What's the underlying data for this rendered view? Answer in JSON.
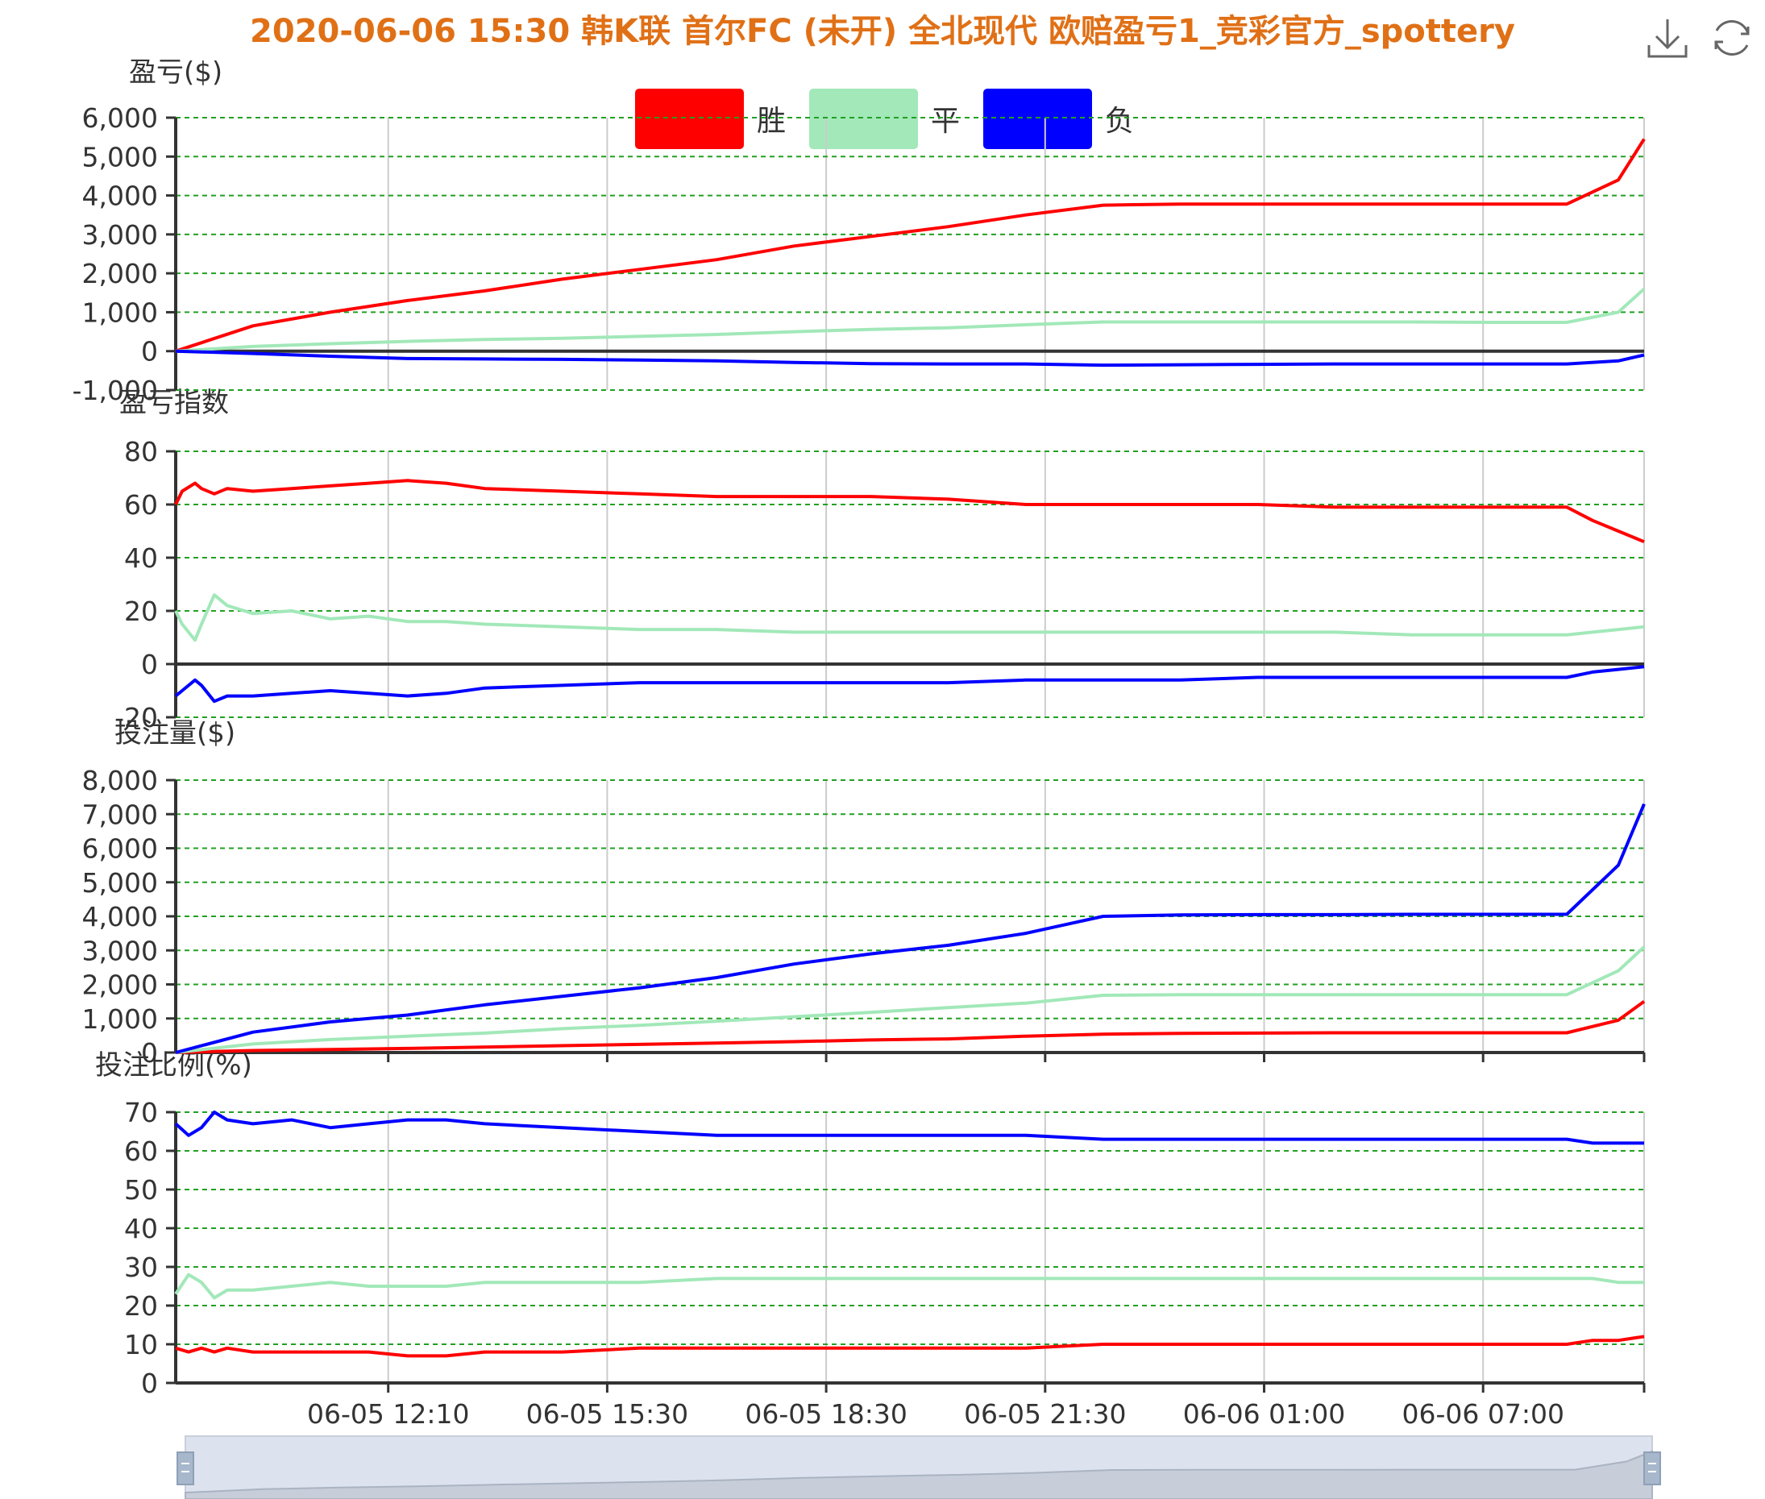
{
  "title": "2020-06-06 15:30 韩K联 首尔FC (未开) 全北现代 欧赔盈亏1_竞彩官方_spottery",
  "colors": {
    "win": "#ff0000",
    "draw": "#a2e8b9",
    "lose": "#0000ff",
    "title": "#e07016",
    "grid": "#22a022"
  },
  "toolbox": {
    "download": "download-icon",
    "refresh": "refresh-icon"
  },
  "legend": [
    {
      "name": "胜",
      "color": "#ff0000"
    },
    {
      "name": "平",
      "color": "#a2e8b9"
    },
    {
      "name": "负",
      "color": "#0000ff"
    }
  ],
  "x_labels": [
    "06-05 12:10",
    "06-05 15:30",
    "06-05 18:30",
    "06-05 21:30",
    "06-06 01:00",
    "06-06 07:00"
  ],
  "chart_data": [
    {
      "type": "line",
      "ylabel": "盈亏($)",
      "ylim": [
        -1000,
        6000
      ],
      "yticks": [
        -1000,
        0,
        1000,
        2000,
        3000,
        4000,
        5000,
        6000
      ],
      "yticklabels": [
        "-1,000",
        "0",
        "1,000",
        "2,000",
        "3,000",
        "4,000",
        "5,000",
        "6,000"
      ],
      "x": [
        0,
        12,
        24,
        36,
        48,
        60,
        72,
        84,
        96,
        108,
        120,
        132,
        144,
        156,
        168,
        180,
        192,
        204,
        216,
        224,
        228
      ],
      "series": [
        {
          "name": "胜",
          "values": [
            0,
            650,
            1000,
            1300,
            1550,
            1850,
            2100,
            2350,
            2700,
            2950,
            3200,
            3500,
            3750,
            3780,
            3780,
            3780,
            3780,
            3780,
            3780,
            4400,
            5450
          ]
        },
        {
          "name": "平",
          "values": [
            0,
            120,
            190,
            250,
            300,
            330,
            380,
            430,
            500,
            560,
            600,
            680,
            750,
            750,
            750,
            750,
            750,
            740,
            740,
            1000,
            1600
          ]
        },
        {
          "name": "负",
          "values": [
            0,
            -60,
            -130,
            -190,
            -200,
            -210,
            -230,
            -250,
            -290,
            -320,
            -330,
            -330,
            -360,
            -350,
            -340,
            -330,
            -330,
            -330,
            -330,
            -250,
            -100
          ]
        }
      ]
    },
    {
      "type": "line",
      "ylabel": "盈亏指数",
      "ylim": [
        -20,
        80
      ],
      "yticks": [
        -20,
        0,
        20,
        40,
        60,
        80
      ],
      "yticklabels": [
        "-20",
        "0",
        "20",
        "40",
        "60",
        "80"
      ],
      "x": [
        0,
        1,
        3,
        4,
        6,
        8,
        12,
        18,
        24,
        30,
        36,
        42,
        48,
        60,
        72,
        84,
        96,
        108,
        120,
        132,
        144,
        156,
        168,
        180,
        192,
        204,
        216,
        220,
        224,
        228
      ],
      "series": [
        {
          "name": "胜",
          "values": [
            60,
            65,
            68,
            66,
            64,
            66,
            65,
            66,
            67,
            68,
            69,
            68,
            66,
            65,
            64,
            63,
            63,
            63,
            62,
            60,
            60,
            60,
            60,
            59,
            59,
            59,
            59,
            54,
            50,
            46
          ]
        },
        {
          "name": "平",
          "values": [
            20,
            15,
            9,
            15,
            26,
            22,
            19,
            20,
            17,
            18,
            16,
            16,
            15,
            14,
            13,
            13,
            12,
            12,
            12,
            12,
            12,
            12,
            12,
            12,
            11,
            11,
            11,
            12,
            13,
            14
          ]
        },
        {
          "name": "负",
          "values": [
            -12,
            -10,
            -6,
            -8,
            -14,
            -12,
            -12,
            -11,
            -10,
            -11,
            -12,
            -11,
            -9,
            -8,
            -7,
            -7,
            -7,
            -7,
            -7,
            -6,
            -6,
            -6,
            -5,
            -5,
            -5,
            -5,
            -5,
            -3,
            -2,
            -1
          ]
        }
      ]
    },
    {
      "type": "line",
      "ylabel": "投注量($)",
      "ylim": [
        0,
        8000
      ],
      "yticks": [
        0,
        1000,
        2000,
        3000,
        4000,
        5000,
        6000,
        7000,
        8000
      ],
      "yticklabels": [
        "0",
        "1,000",
        "2,000",
        "3,000",
        "4,000",
        "5,000",
        "6,000",
        "7,000",
        "8,000"
      ],
      "x": [
        0,
        12,
        24,
        36,
        48,
        60,
        72,
        84,
        96,
        108,
        120,
        132,
        144,
        156,
        168,
        180,
        192,
        204,
        216,
        224,
        228
      ],
      "series": [
        {
          "name": "胜",
          "values": [
            0,
            60,
            90,
            120,
            160,
            200,
            240,
            280,
            320,
            370,
            400,
            480,
            540,
            560,
            570,
            580,
            580,
            580,
            580,
            950,
            1500
          ]
        },
        {
          "name": "平",
          "values": [
            0,
            250,
            380,
            480,
            570,
            700,
            800,
            920,
            1050,
            1180,
            1320,
            1450,
            1680,
            1700,
            1700,
            1700,
            1700,
            1700,
            1700,
            2400,
            3100
          ]
        },
        {
          "name": "负",
          "values": [
            0,
            600,
            900,
            1100,
            1400,
            1650,
            1900,
            2200,
            2600,
            2900,
            3150,
            3500,
            4000,
            4040,
            4050,
            4050,
            4060,
            4060,
            4060,
            5500,
            7300
          ]
        }
      ]
    },
    {
      "type": "line",
      "ylabel": "投注比例(%)",
      "ylim": [
        0,
        70
      ],
      "yticks": [
        0,
        10,
        20,
        30,
        40,
        50,
        60,
        70
      ],
      "yticklabels": [
        "0",
        "10",
        "20",
        "30",
        "40",
        "50",
        "60",
        "70"
      ],
      "x": [
        0,
        2,
        4,
        6,
        8,
        12,
        18,
        24,
        30,
        36,
        42,
        48,
        60,
        72,
        84,
        96,
        108,
        120,
        132,
        144,
        156,
        168,
        180,
        192,
        204,
        216,
        220,
        224,
        228
      ],
      "series": [
        {
          "name": "胜",
          "values": [
            9,
            8,
            9,
            8,
            9,
            8,
            8,
            8,
            8,
            7,
            7,
            8,
            8,
            9,
            9,
            9,
            9,
            9,
            9,
            10,
            10,
            10,
            10,
            10,
            10,
            10,
            11,
            11,
            12
          ]
        },
        {
          "name": "平",
          "values": [
            23,
            28,
            26,
            22,
            24,
            24,
            25,
            26,
            25,
            25,
            25,
            26,
            26,
            26,
            27,
            27,
            27,
            27,
            27,
            27,
            27,
            27,
            27,
            27,
            27,
            27,
            27,
            26,
            26
          ]
        },
        {
          "name": "负",
          "values": [
            67,
            64,
            66,
            70,
            68,
            67,
            68,
            66,
            67,
            68,
            68,
            67,
            66,
            65,
            64,
            64,
            64,
            64,
            64,
            63,
            63,
            63,
            63,
            63,
            63,
            63,
            62,
            62,
            62
          ]
        }
      ]
    }
  ]
}
